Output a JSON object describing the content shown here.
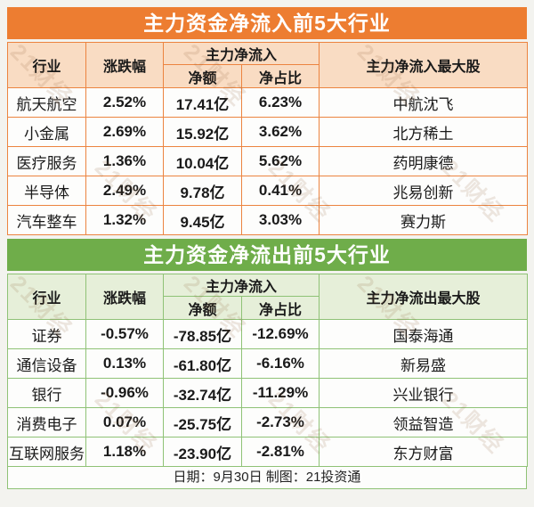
{
  "watermark": {
    "text": "21财经"
  },
  "footer": {
    "text": "日期：9月30日 制图：21投资通"
  },
  "chart_data": [
    {
      "type": "table",
      "title": "主力资金净流入前5大行业",
      "group_header": "主力净流入",
      "top_stock_header": "主力净流入最大股",
      "columns": [
        "行业",
        "涨跌幅",
        "净额",
        "净占比"
      ],
      "rows": [
        [
          "航天航空",
          "2.52%",
          "17.41亿",
          "6.23%",
          "中航沈飞"
        ],
        [
          "小金属",
          "2.69%",
          "15.92亿",
          "3.62%",
          "北方稀土"
        ],
        [
          "医疗服务",
          "1.36%",
          "10.04亿",
          "5.62%",
          "药明康德"
        ],
        [
          "半导体",
          "2.49%",
          "9.78亿",
          "0.41%",
          "兆易创新"
        ],
        [
          "汽车整车",
          "1.32%",
          "9.45亿",
          "3.03%",
          "赛力斯"
        ]
      ],
      "accent_color": "#ED7D31",
      "border_color": "#EC8440",
      "header_bg": "#F9DCC3"
    },
    {
      "type": "table",
      "title": "主力资金净流出前5大行业",
      "group_header": "主力净流入",
      "top_stock_header": "主力净流出最大股",
      "columns": [
        "行业",
        "涨跌幅",
        "净额",
        "净占比"
      ],
      "rows": [
        [
          "证券",
          "-0.57%",
          "-78.85亿",
          "-12.69%",
          "国泰海通"
        ],
        [
          "通信设备",
          "0.13%",
          "-61.80亿",
          "-6.16%",
          "新易盛"
        ],
        [
          "银行",
          "-0.96%",
          "-32.74亿",
          "-11.29%",
          "兴业银行"
        ],
        [
          "消费电子",
          "0.07%",
          "-25.75亿",
          "-2.73%",
          "领益智造"
        ],
        [
          "互联网服务",
          "1.18%",
          "-23.90亿",
          "-2.81%",
          "东方财富"
        ]
      ],
      "accent_color": "#6FAD4A",
      "border_color": "#8FC276",
      "header_bg": "#E6EFD9"
    }
  ]
}
